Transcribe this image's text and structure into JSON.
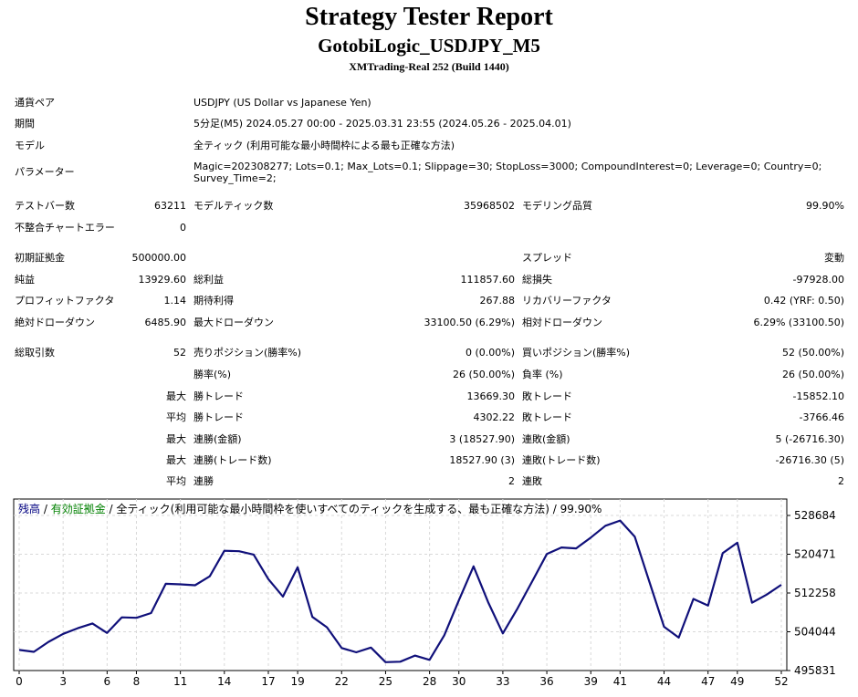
{
  "header": {
    "title": "Strategy Tester Report",
    "subtitle": "GotobiLogic_USDJPY_M5",
    "server": "XMTrading-Real 252 (Build 1440)"
  },
  "info": {
    "symbol_label": "通貨ペア",
    "symbol": "USDJPY (US Dollar vs Japanese Yen)",
    "period_label": "期間",
    "period": "5分足(M5) 2024.05.27 00:00 - 2025.03.31 23:55 (2024.05.26 - 2025.04.01)",
    "model_label": "モデル",
    "model": "全ティック (利用可能な最小時間枠による最も正確な方法)",
    "params_label": "パラメーター",
    "params_line1": "Magic=202308277; Lots=0.1; Max_Lots=0.1; Slippage=30; StopLoss=3000; CompoundInterest=0; Leverage=0; Country=0;",
    "params_line2": "Survey_Time=2;"
  },
  "stats": {
    "bars_label": "テストバー数",
    "bars": "63211",
    "ticks_label": "モデルティック数",
    "ticks": "35968502",
    "quality_label": "モデリング品質",
    "quality": "99.90%",
    "mismatch_label": "不整合チャートエラー",
    "mismatch": "0",
    "deposit_label": "初期証拠金",
    "deposit": "500000.00",
    "spread_label": "スプレッド",
    "spread": "変動",
    "net_label": "純益",
    "net": "13929.60",
    "gross_profit_label": "総利益",
    "gross_profit": "111857.60",
    "gross_loss_label": "総損失",
    "gross_loss": "-97928.00",
    "pf_label": "プロフィットファクタ",
    "pf": "1.14",
    "expected_label": "期待利得",
    "expected": "267.88",
    "recovery_label": "リカバリーファクタ",
    "recovery": "0.42 (YRF: 0.50)",
    "abs_dd_label": "絶対ドローダウン",
    "abs_dd": "6485.90",
    "max_dd_label": "最大ドローダウン",
    "max_dd": "33100.50 (6.29%)",
    "rel_dd_label": "相対ドローダウン",
    "rel_dd": "6.29% (33100.50)",
    "trades_label": "総取引数",
    "trades": "52",
    "short_label": "売りポジション(勝率%)",
    "short": "0 (0.00%)",
    "long_label": "買いポジション(勝率%)",
    "long": "52 (50.00%)",
    "winrate_label": "勝率(%)",
    "winrate": "26 (50.00%)",
    "lossrate_label": "負率 (%)",
    "lossrate": "26 (50.00%)",
    "max_word": "最大",
    "avg_word": "平均",
    "max_win_label": "勝トレード",
    "max_win": "13669.30",
    "max_loss_label": "敗トレード",
    "max_loss": "-15852.10",
    "avg_win_label": "勝トレード",
    "avg_win": "4302.22",
    "avg_loss_label": "敗トレード",
    "avg_loss": "-3766.46",
    "cons_wins_label": "連勝(金額)",
    "cons_wins": "3 (18527.90)",
    "cons_losses_label": "連敗(金額)",
    "cons_losses": "5 (-26716.30)",
    "cons_profit_label": "連勝(トレード数)",
    "cons_profit": "18527.90 (3)",
    "cons_loss_label": "連敗(トレード数)",
    "cons_loss": "-26716.30 (5)",
    "avg_cons_wins_label": "連勝",
    "avg_cons_wins": "2",
    "avg_cons_losses_label": "連敗",
    "avg_cons_losses": "2"
  },
  "chart_legend": {
    "balance": "残高",
    "sep1": " / ",
    "equity": "有効証拠金",
    "rest": " / 全ティック(利用可能な最小時間枠を使いすべてのティックを生成する、最も正確な方法) / 99.90%"
  },
  "colors": {
    "line": "#10107a",
    "balance": "#000080",
    "equity": "#008000",
    "grid": "#d8d8d8"
  },
  "chart_data": {
    "type": "line",
    "x_ticks": [
      "0",
      "3",
      "6",
      "8",
      "11",
      "14",
      "17",
      "19",
      "22",
      "25",
      "28",
      "30",
      "33",
      "36",
      "39",
      "41",
      "44",
      "47",
      "49",
      "52"
    ],
    "y_ticks": [
      "528684",
      "520471",
      "512258",
      "504044",
      "495831"
    ],
    "ylim": [
      495831,
      528684
    ],
    "xlim": [
      0,
      52
    ],
    "grid": true,
    "series": [
      {
        "x": [
          0,
          1,
          2,
          3,
          4,
          5,
          6,
          7,
          8,
          9,
          10,
          11,
          12,
          13,
          14,
          15,
          16,
          17,
          18,
          19,
          20,
          21,
          22,
          23,
          24,
          25,
          26,
          27,
          28,
          29,
          30,
          31,
          32,
          33,
          34,
          35,
          36,
          37,
          38,
          39,
          40,
          41,
          42,
          43,
          44,
          45,
          46,
          47,
          48,
          49,
          50,
          51,
          52
        ],
        "values": [
          500200,
          499800,
          501900,
          503600,
          504800,
          505800,
          503800,
          507100,
          507000,
          508000,
          514200,
          514100,
          513900,
          515800,
          521200,
          521100,
          520400,
          515200,
          511500,
          517700,
          507200,
          505000,
          500600,
          499700,
          500700,
          497600,
          497700,
          499000,
          498100,
          503300,
          510700,
          517900,
          510300,
          503700,
          509000,
          514700,
          520500,
          521900,
          521700,
          524000,
          526500,
          527600,
          524200,
          514600,
          505100,
          502800,
          511000,
          509600,
          520700,
          522900,
          510200,
          511900,
          514000
        ]
      }
    ]
  }
}
